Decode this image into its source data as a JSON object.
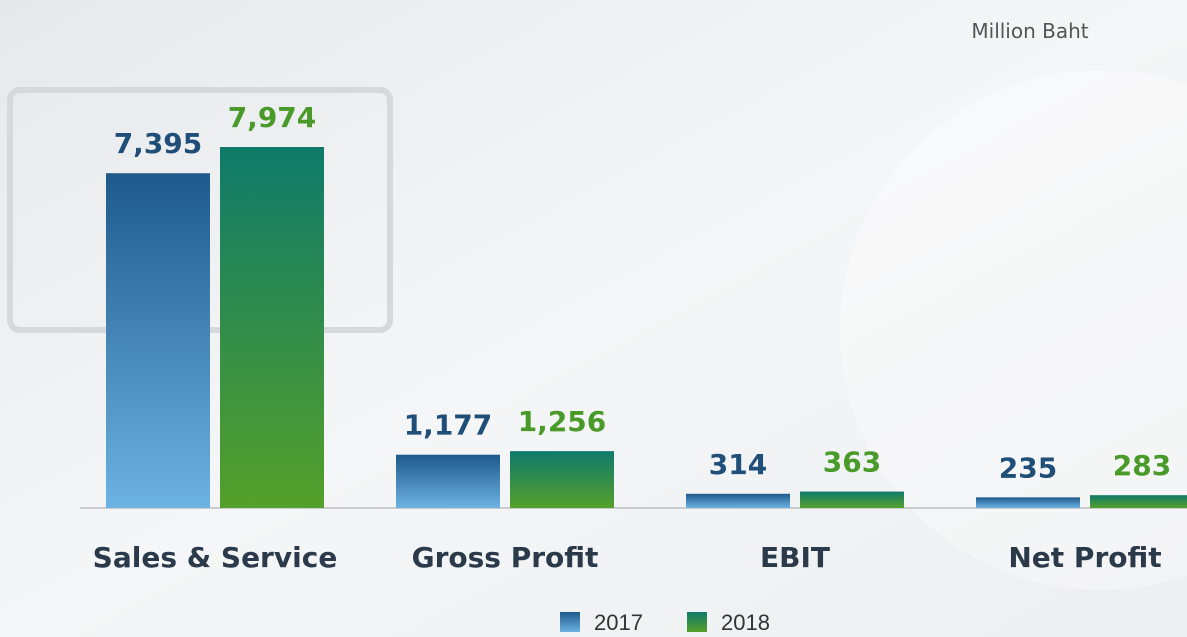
{
  "chart_data": {
    "type": "bar",
    "annotation": "Million Baht",
    "categories": [
      "Sales & Service",
      "Gross Profit",
      "EBIT",
      "Net Profit"
    ],
    "series": [
      {
        "name": "2017",
        "color": "#1e5a8c",
        "values": [
          7395,
          1177,
          314,
          235
        ],
        "value_labels": [
          "7,395",
          "1,177",
          "314",
          "235"
        ]
      },
      {
        "name": "2018",
        "color": "#0f7a6a",
        "values": [
          7974,
          1256,
          363,
          283
        ],
        "value_labels": [
          "7,974",
          "1,256",
          "363",
          "283"
        ]
      }
    ],
    "legend": "bottom"
  }
}
